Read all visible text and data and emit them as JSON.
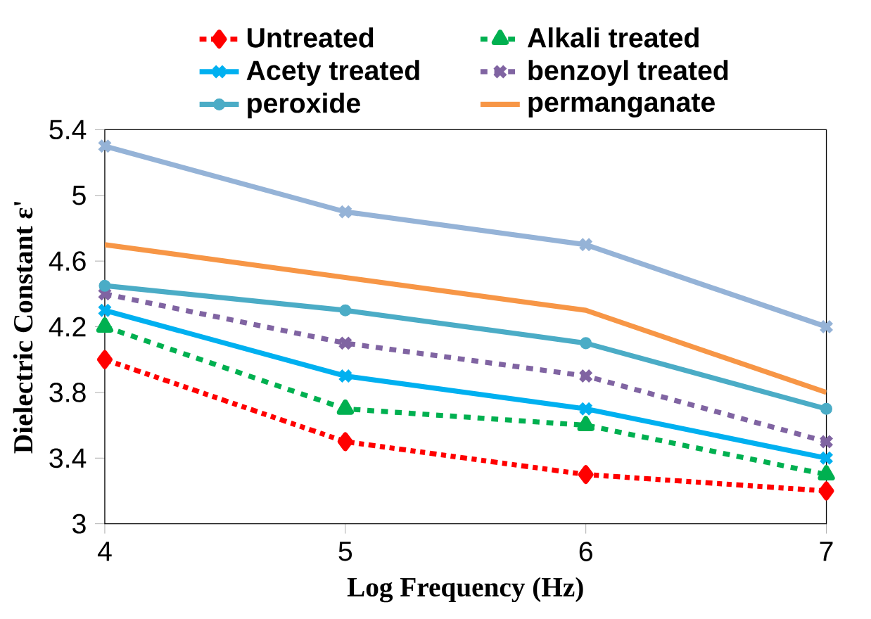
{
  "chart_data": {
    "type": "line",
    "xlabel": "Log Frequency (Hz)",
    "ylabel": "Dielectric Constant ε'",
    "x": [
      4,
      5,
      6,
      7
    ],
    "xlim": [
      4,
      7
    ],
    "xticks": [
      4,
      5,
      6,
      7
    ],
    "ylim": [
      3,
      5.4
    ],
    "yticks": [
      3,
      3.4,
      3.8,
      4.2,
      4.6,
      5,
      5.4
    ],
    "legend": "top",
    "grid": false,
    "series": [
      {
        "name": "Untreated",
        "color": "#ff0000",
        "values": [
          4.0,
          3.5,
          3.3,
          3.2
        ],
        "marker": "diamond",
        "line_style": "dotted"
      },
      {
        "name": "Alkali treated",
        "color": "#00b050",
        "values": [
          4.2,
          3.7,
          3.6,
          3.3
        ],
        "marker": "triangle",
        "line_style": "dashed"
      },
      {
        "name": "Acety treated",
        "color": "#00b0f0",
        "values": [
          4.3,
          3.9,
          3.7,
          3.4
        ],
        "marker": "cross",
        "line_style": "solid"
      },
      {
        "name": "benzoyl treated",
        "color": "#8064a2",
        "values": [
          4.4,
          4.1,
          3.9,
          3.5
        ],
        "marker": "cross",
        "line_style": "dashed"
      },
      {
        "name": "peroxide",
        "color": "#4bacc6",
        "values": [
          4.45,
          4.3,
          4.1,
          3.7
        ],
        "marker": "circle",
        "line_style": "solid"
      },
      {
        "name": "permanganate",
        "color": "#f79646",
        "values": [
          4.7,
          4.5,
          4.3,
          3.8
        ],
        "marker": "none",
        "line_style": "solid"
      },
      {
        "color": "#95b3d7",
        "values": [
          5.3,
          4.9,
          4.7,
          4.2
        ],
        "marker": "cross",
        "line_style": "solid"
      }
    ]
  }
}
